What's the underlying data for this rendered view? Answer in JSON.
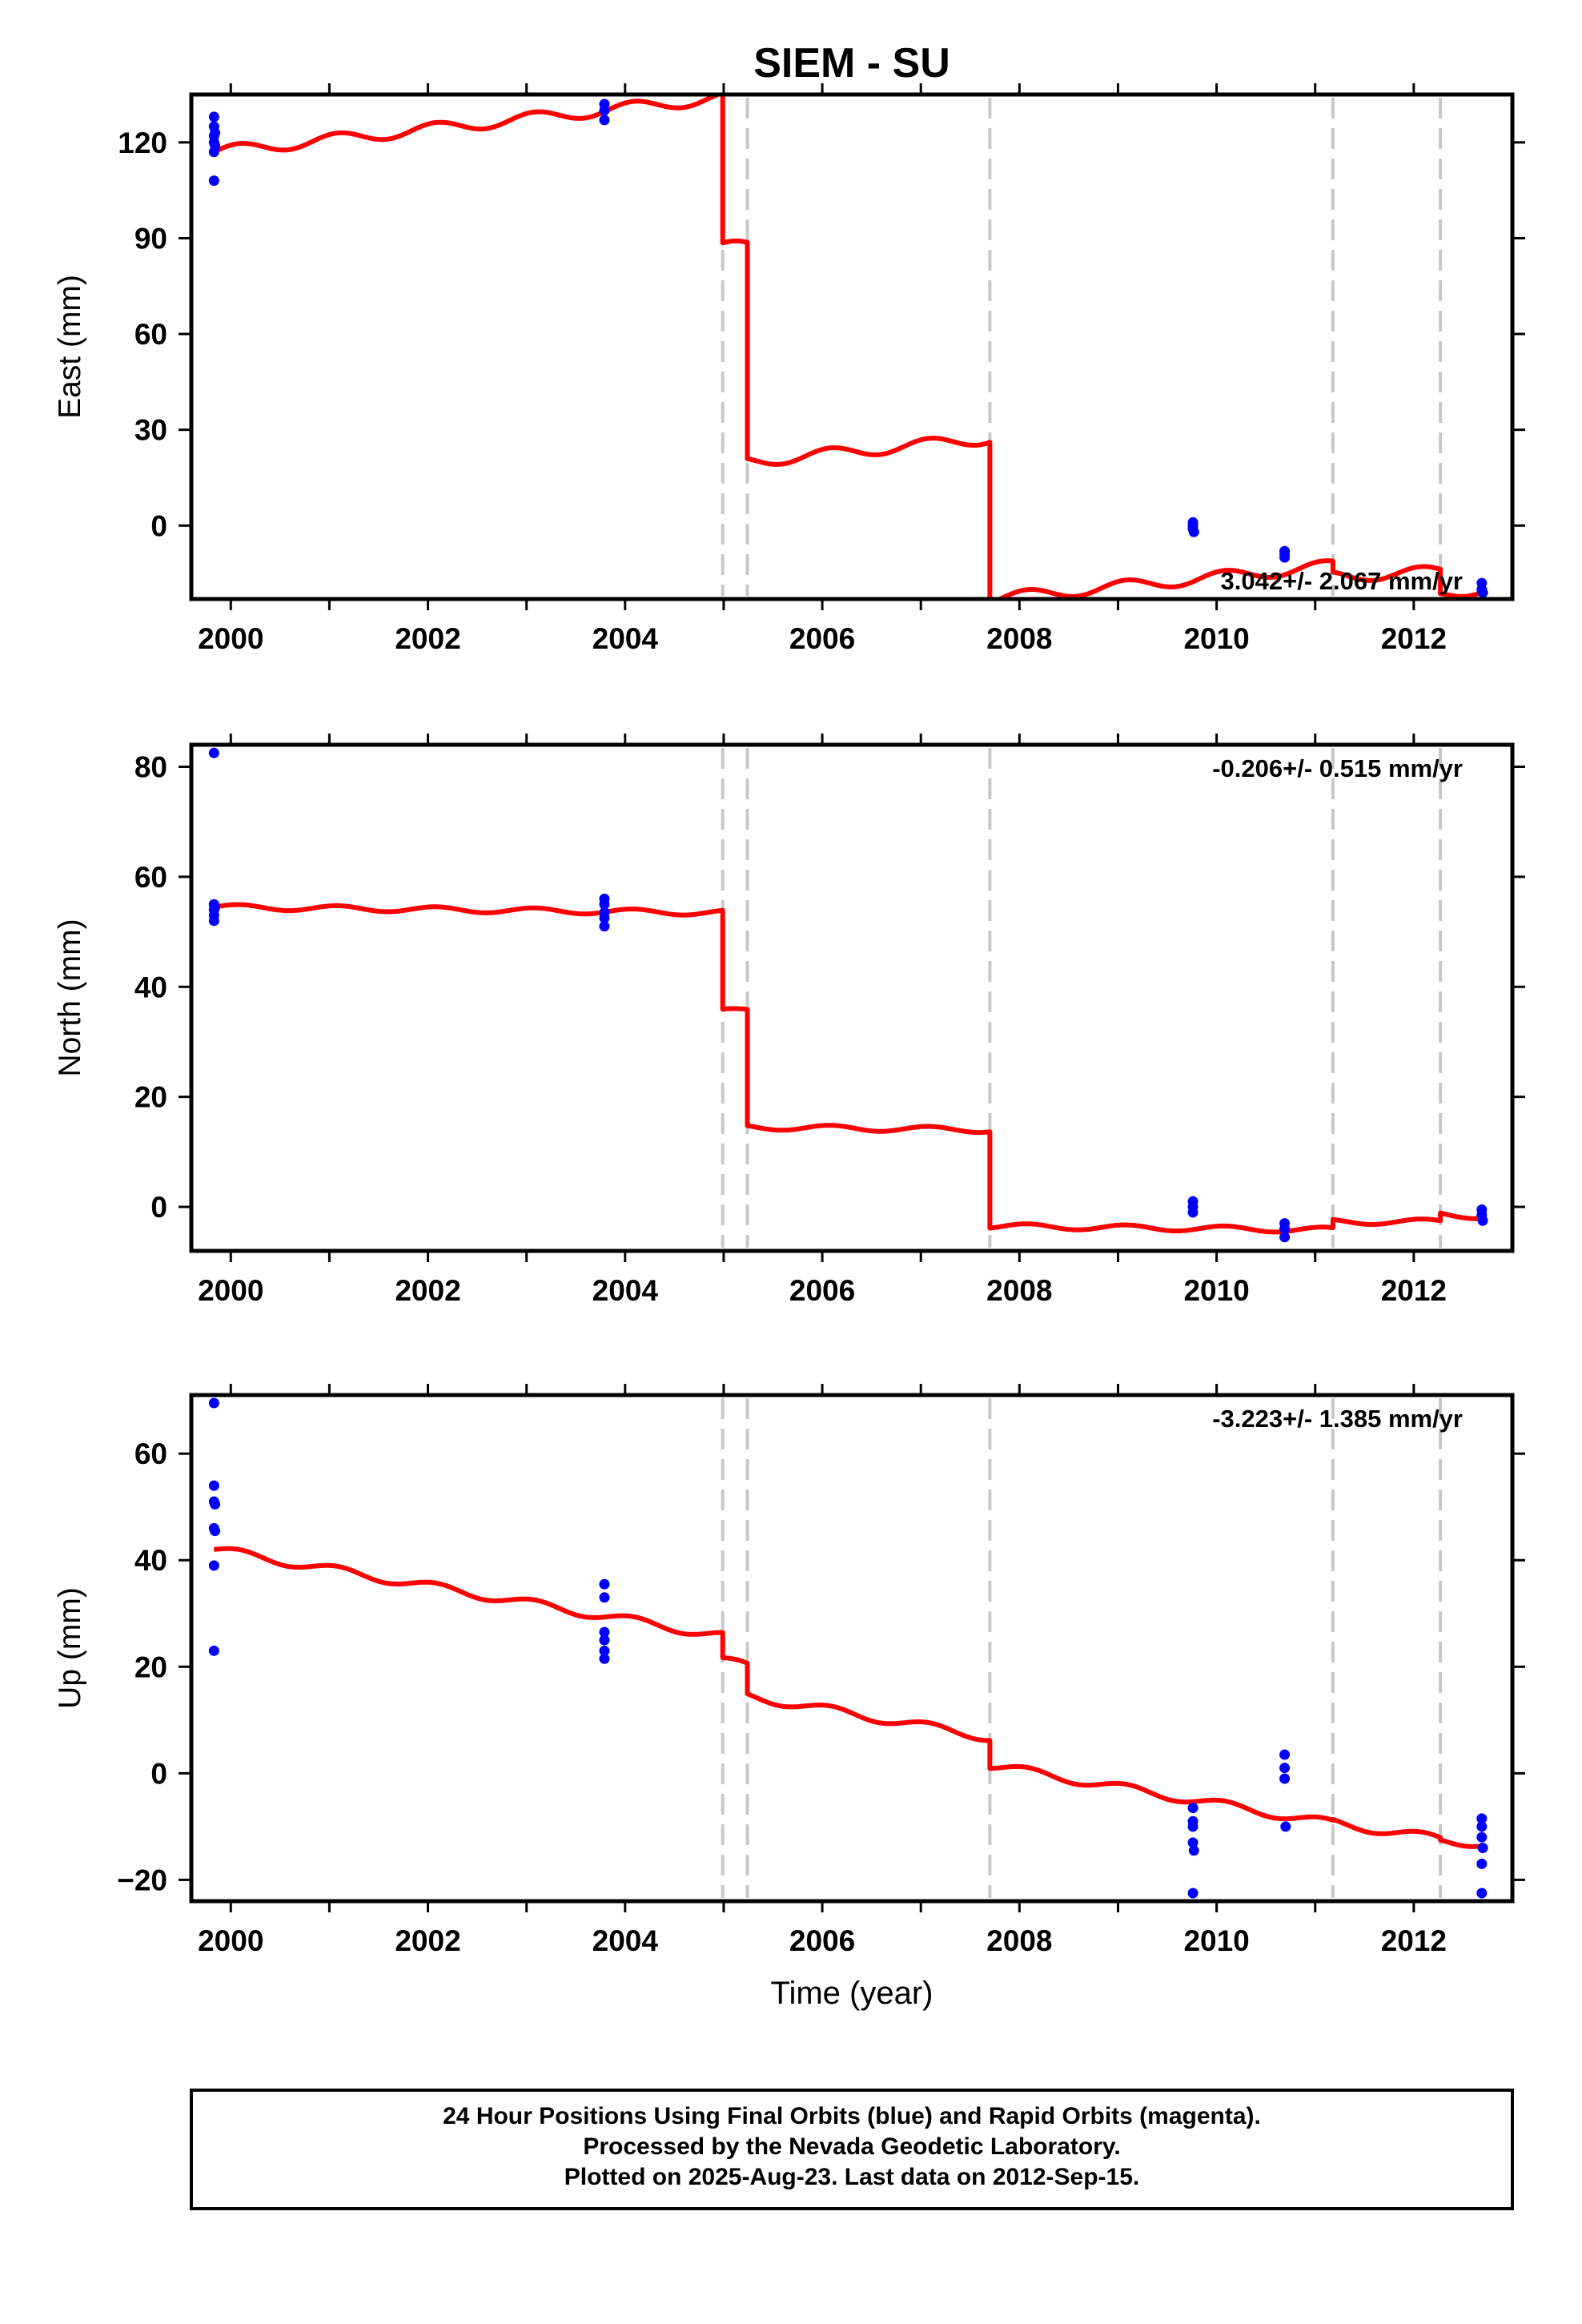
{
  "chart_data": {
    "type": "line",
    "title": "SIEM - SU",
    "xlabel": "Time (year)",
    "xlim": [
      1999.6,
      2013.0
    ],
    "xticks": [
      2000,
      2002,
      2004,
      2006,
      2008,
      2010,
      2012
    ],
    "event_lines": [
      2004.99,
      2005.24,
      2007.7,
      2011.18,
      2012.27
    ],
    "panels": [
      {
        "ylabel": "East (mm)",
        "ylim": [
          -23,
          135
        ],
        "yticks": [
          0,
          30,
          60,
          90,
          120
        ],
        "rate_label": "3.042+/- 2.067 mm/yr",
        "rate_position": "bottom-right",
        "model": {
          "segments": [
            {
              "x": [
                1999.83,
                2004.99
              ],
              "start": 117.0,
              "slope": 3.3
            },
            {
              "x": [
                2004.99,
                2005.24
              ],
              "start": 87.0,
              "slope": 3.0
            },
            {
              "x": [
                2005.24,
                2007.7
              ],
              "start": 20.0,
              "slope": 3.0
            },
            {
              "x": [
                2007.7,
                2011.18
              ],
              "start": -23.0,
              "slope": 3.0
            },
            {
              "x": [
                2011.18,
                2012.27
              ],
              "start": -16.0,
              "slope": 1.5
            },
            {
              "x": [
                2012.27,
                2012.72
              ],
              "start": -22.0,
              "slope": 6.0
            }
          ],
          "seasonal_amplitude": 1.8
        },
        "points": [
          {
            "x": 1999.83,
            "y": 128
          },
          {
            "x": 1999.83,
            "y": 125
          },
          {
            "x": 1999.83,
            "y": 122
          },
          {
            "x": 1999.83,
            "y": 120
          },
          {
            "x": 1999.83,
            "y": 117
          },
          {
            "x": 1999.83,
            "y": 108
          },
          {
            "x": 1999.84,
            "y": 123
          },
          {
            "x": 1999.84,
            "y": 119
          },
          {
            "x": 2003.79,
            "y": 132
          },
          {
            "x": 2003.79,
            "y": 130
          },
          {
            "x": 2003.79,
            "y": 127
          },
          {
            "x": 2009.76,
            "y": 1
          },
          {
            "x": 2009.76,
            "y": 0
          },
          {
            "x": 2009.76,
            "y": -1
          },
          {
            "x": 2009.77,
            "y": -2
          },
          {
            "x": 2010.69,
            "y": -8
          },
          {
            "x": 2010.69,
            "y": -9
          },
          {
            "x": 2010.69,
            "y": -10
          },
          {
            "x": 2012.69,
            "y": -18
          },
          {
            "x": 2012.69,
            "y": -20
          },
          {
            "x": 2012.7,
            "y": -21
          }
        ]
      },
      {
        "ylabel": "North (mm)",
        "ylim": [
          -8,
          84
        ],
        "yticks": [
          0,
          20,
          40,
          60,
          80
        ],
        "rate_label": "-0.206+/- 0.515 mm/yr",
        "rate_position": "top-right",
        "model": {
          "segments": [
            {
              "x": [
                1999.83,
                2004.99
              ],
              "start": 54.5,
              "slope": -0.2
            },
            {
              "x": [
                2004.99,
                2005.24
              ],
              "start": 35.5,
              "slope": 0.5
            },
            {
              "x": [
                2005.24,
                2007.7
              ],
              "start": 14.5,
              "slope": -0.2
            },
            {
              "x": [
                2007.7,
                2011.18
              ],
              "start": -3.5,
              "slope": -0.2
            },
            {
              "x": [
                2011.18,
                2012.27
              ],
              "start": -2.7,
              "slope": 0.0
            },
            {
              "x": [
                2012.27,
                2012.72
              ],
              "start": -1.3,
              "slope": -1.0
            }
          ],
          "seasonal_amplitude": 0.5
        },
        "points": [
          {
            "x": 1999.83,
            "y": 82.5
          },
          {
            "x": 1999.83,
            "y": 55.0
          },
          {
            "x": 1999.83,
            "y": 54.0
          },
          {
            "x": 1999.83,
            "y": 53.0
          },
          {
            "x": 1999.83,
            "y": 52.0
          },
          {
            "x": 1999.84,
            "y": 54.5
          },
          {
            "x": 2003.79,
            "y": 56.0
          },
          {
            "x": 2003.79,
            "y": 55.0
          },
          {
            "x": 2003.79,
            "y": 53.5
          },
          {
            "x": 2003.79,
            "y": 52.5
          },
          {
            "x": 2003.79,
            "y": 51.0
          },
          {
            "x": 2009.76,
            "y": 1.0
          },
          {
            "x": 2009.76,
            "y": 0.0
          },
          {
            "x": 2009.76,
            "y": -1.0
          },
          {
            "x": 2010.69,
            "y": -3.0
          },
          {
            "x": 2010.69,
            "y": -4.0
          },
          {
            "x": 2010.69,
            "y": -5.5
          },
          {
            "x": 2012.69,
            "y": -0.5
          },
          {
            "x": 2012.69,
            "y": -1.5
          },
          {
            "x": 2012.7,
            "y": -2.5
          }
        ]
      },
      {
        "ylabel": "Up (mm)",
        "ylim": [
          -24,
          71
        ],
        "yticks": [
          -20,
          0,
          20,
          40,
          60
        ],
        "rate_label": "-3.223+/- 1.385 mm/yr",
        "rate_position": "top-right",
        "model": {
          "segments": [
            {
              "x": [
                1999.83,
                2004.99
              ],
              "start": 42.0,
              "slope": -3.15
            },
            {
              "x": [
                2004.99,
                2005.24
              ],
              "start": 21.0,
              "slope": -3.0
            },
            {
              "x": [
                2005.24,
                2007.7
              ],
              "start": 14.5,
              "slope": -3.15
            },
            {
              "x": [
                2007.7,
                2011.18
              ],
              "start": 1.5,
              "slope": -3.15
            },
            {
              "x": [
                2011.18,
                2012.27
              ],
              "start": -9.3,
              "slope": -2.8
            },
            {
              "x": [
                2012.27,
                2012.72
              ],
              "start": -12.8,
              "slope": -0.5
            }
          ],
          "seasonal_amplitude": 0.8
        },
        "points": [
          {
            "x": 1999.83,
            "y": 69.5
          },
          {
            "x": 1999.83,
            "y": 54.0
          },
          {
            "x": 1999.83,
            "y": 51.0
          },
          {
            "x": 1999.84,
            "y": 50.5
          },
          {
            "x": 1999.83,
            "y": 46.0
          },
          {
            "x": 1999.84,
            "y": 45.5
          },
          {
            "x": 1999.83,
            "y": 39.0
          },
          {
            "x": 1999.83,
            "y": 23.0
          },
          {
            "x": 2003.79,
            "y": 35.5
          },
          {
            "x": 2003.79,
            "y": 33.0
          },
          {
            "x": 2003.79,
            "y": 26.5
          },
          {
            "x": 2003.79,
            "y": 25.0
          },
          {
            "x": 2003.79,
            "y": 23.0
          },
          {
            "x": 2003.79,
            "y": 21.5
          },
          {
            "x": 2009.76,
            "y": -6.5
          },
          {
            "x": 2009.76,
            "y": -9.0
          },
          {
            "x": 2009.76,
            "y": -10.0
          },
          {
            "x": 2009.76,
            "y": -13.0
          },
          {
            "x": 2009.77,
            "y": -14.5
          },
          {
            "x": 2009.76,
            "y": -22.5
          },
          {
            "x": 2010.69,
            "y": 3.5
          },
          {
            "x": 2010.69,
            "y": 1.0
          },
          {
            "x": 2010.69,
            "y": -1.0
          },
          {
            "x": 2010.7,
            "y": -10.0
          },
          {
            "x": 2012.69,
            "y": -8.5
          },
          {
            "x": 2012.69,
            "y": -10.0
          },
          {
            "x": 2012.69,
            "y": -12.0
          },
          {
            "x": 2012.7,
            "y": -14.0
          },
          {
            "x": 2012.69,
            "y": -17.0
          },
          {
            "x": 2012.69,
            "y": -22.5
          }
        ]
      }
    ],
    "colors": {
      "model_line": "#ff0000",
      "points": "#0000ff",
      "event_lines": "#c8c8c8",
      "frame": "#000000"
    }
  },
  "footer": {
    "line1": "24 Hour Positions Using Final Orbits (blue) and Rapid Orbits (magenta).",
    "line2": "Processed by the Nevada Geodetic Laboratory.",
    "line3": "Plotted on 2025-Aug-23. Last data on 2012-Sep-15."
  }
}
